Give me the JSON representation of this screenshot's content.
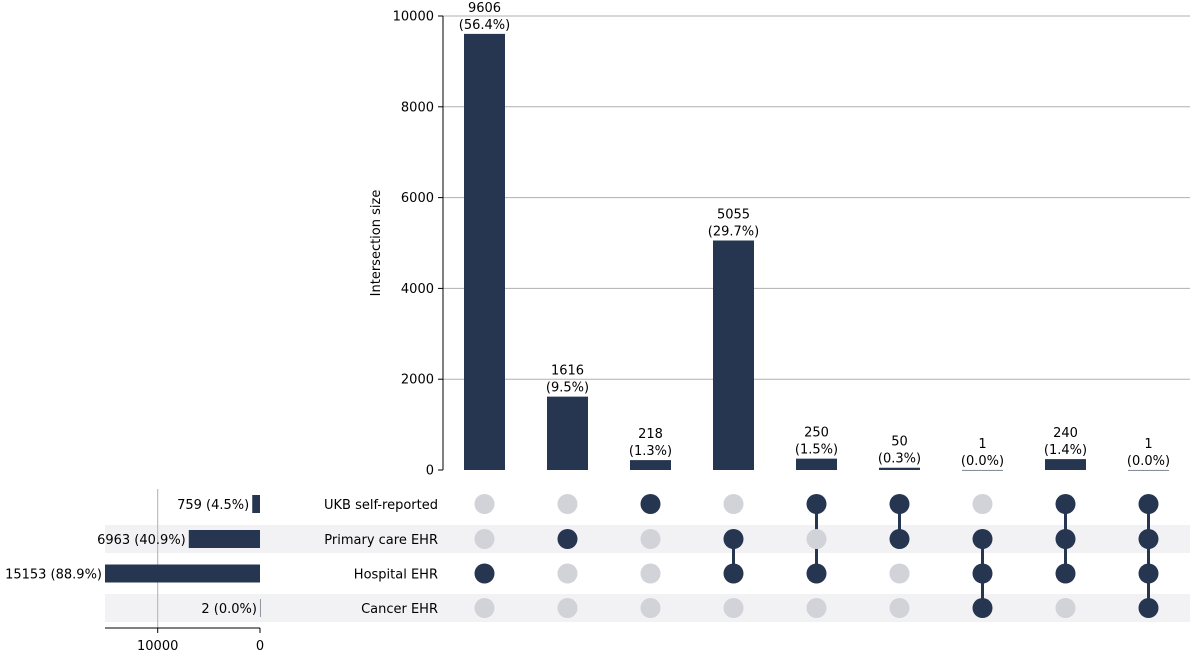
{
  "chart_data": {
    "type": "upset",
    "bar_color": "#263550",
    "inactive_dot_color": "#d1d3d9",
    "stripe_color": "#f2f2f4",
    "grid_color": "#b0b0b0",
    "intersection_chart": {
      "ylabel": "Intersection size",
      "ylim": [
        0,
        10000
      ],
      "yticks": [
        0,
        2000,
        4000,
        6000,
        8000,
        10000
      ],
      "grid": true,
      "values": [
        9606,
        1616,
        218,
        5055,
        250,
        50,
        1,
        240,
        1
      ],
      "counts": [
        "9606",
        "1616",
        "218",
        "5055",
        "250",
        "50",
        "1",
        "240",
        "1"
      ],
      "percents": [
        "(56.4%)",
        "(9.5%)",
        "(1.3%)",
        "(29.7%)",
        "(1.5%)",
        "(0.3%)",
        "(0.0%)",
        "(1.4%)",
        "(0.0%)"
      ]
    },
    "sets": [
      {
        "name": "UKB self-reported",
        "size": 759,
        "label": "759 (4.5%)"
      },
      {
        "name": "Primary care EHR",
        "size": 6963,
        "label": "6963 (40.9%)"
      },
      {
        "name": "Hospital EHR",
        "size": 15153,
        "label": "15153 (88.9%)"
      },
      {
        "name": "Cancer EHR",
        "size": 2,
        "label": "2 (0.0%)"
      }
    ],
    "membership": [
      [
        0,
        0,
        1,
        0
      ],
      [
        0,
        1,
        0,
        0
      ],
      [
        1,
        0,
        0,
        0
      ],
      [
        0,
        1,
        1,
        0
      ],
      [
        1,
        0,
        1,
        0
      ],
      [
        1,
        1,
        0,
        0
      ],
      [
        0,
        1,
        1,
        1
      ],
      [
        1,
        1,
        1,
        0
      ],
      [
        1,
        1,
        1,
        1
      ]
    ],
    "set_size_chart": {
      "ticks": [
        10000,
        0
      ],
      "tick_labels": [
        "10000",
        "0"
      ],
      "direction": "reversed"
    }
  }
}
